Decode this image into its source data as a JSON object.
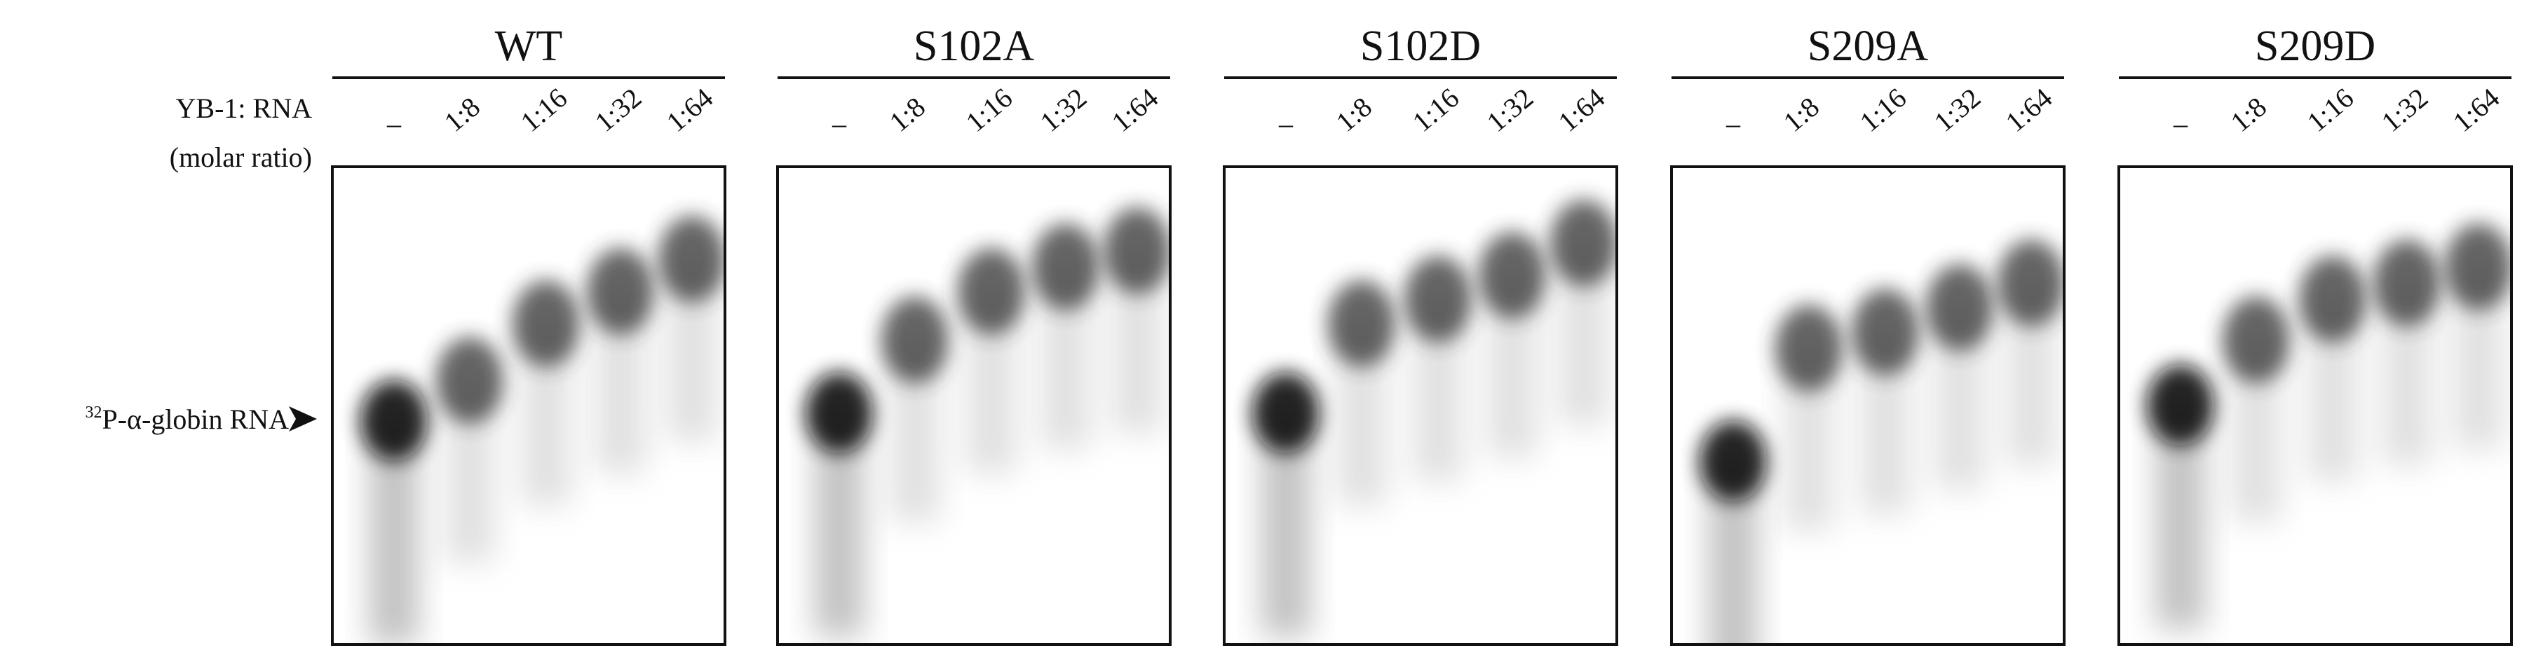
{
  "figure": {
    "ratio_label": "YB-1: RNA",
    "ratio_unit": "(molar ratio)",
    "marker": {
      "isotope": "32",
      "probe": "P-α-globin RNA"
    },
    "lanes": [
      "–",
      "1:8",
      "1:16",
      "1:32",
      "1:64"
    ],
    "panels": [
      {
        "title": "WT"
      },
      {
        "title": "S102A"
      },
      {
        "title": "S102D"
      },
      {
        "title": "S209A"
      },
      {
        "title": "S209D"
      }
    ]
  }
}
